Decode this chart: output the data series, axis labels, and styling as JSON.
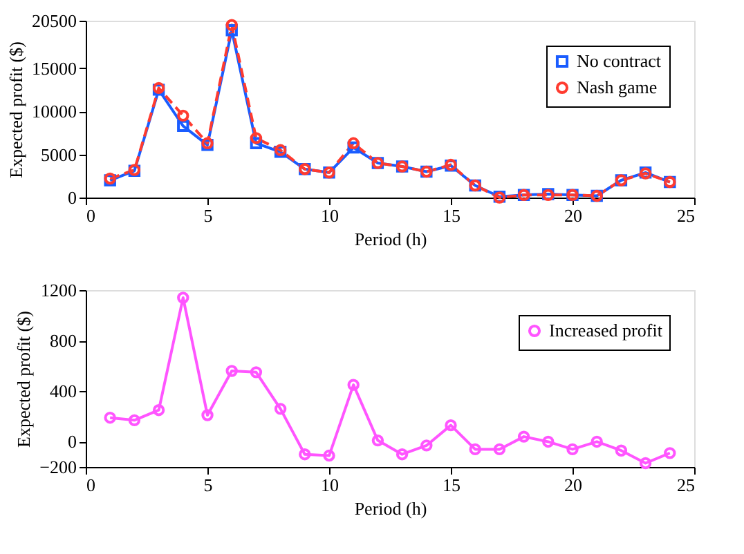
{
  "chart_data": [
    {
      "type": "line",
      "xlabel": "Period (h)",
      "ylabel": "Expected profit ($)",
      "x": [
        1,
        2,
        3,
        4,
        5,
        6,
        7,
        8,
        9,
        10,
        11,
        12,
        13,
        14,
        15,
        16,
        17,
        18,
        19,
        20,
        21,
        22,
        23,
        24
      ],
      "xlim": [
        0,
        25
      ],
      "xticks": [
        0,
        5,
        10,
        15,
        20,
        25
      ],
      "ylim": [
        0,
        20500
      ],
      "yticks": [
        0,
        5000,
        10000,
        15000,
        20500
      ],
      "grid": false,
      "legend": "top right",
      "series": [
        {
          "name": "No contract",
          "color": "#1a5cff",
          "marker": "square",
          "line_style": "solid",
          "values": [
            2000,
            3100,
            12500,
            8300,
            6100,
            19400,
            6300,
            5300,
            3300,
            2900,
            5800,
            4000,
            3600,
            3000,
            3700,
            1400,
            100,
            300,
            400,
            300,
            200,
            2000,
            2900,
            1800
          ]
        },
        {
          "name": "Nash game",
          "color": "#ff3b2f",
          "marker": "circle",
          "line_style": "dashed",
          "values": [
            2200,
            3200,
            12700,
            9500,
            6300,
            20000,
            6900,
            5500,
            3300,
            2900,
            6300,
            4000,
            3600,
            3000,
            3800,
            1400,
            0,
            300,
            300,
            300,
            200,
            2000,
            2800,
            1800
          ]
        }
      ]
    },
    {
      "type": "line",
      "xlabel": "Period (h)",
      "ylabel": "Expected profit ($)",
      "x": [
        1,
        2,
        3,
        4,
        5,
        6,
        7,
        8,
        9,
        10,
        11,
        12,
        13,
        14,
        15,
        16,
        17,
        18,
        19,
        20,
        21,
        22,
        23,
        24
      ],
      "xlim": [
        0,
        25
      ],
      "xticks": [
        0,
        5,
        10,
        15,
        20,
        25
      ],
      "ylim": [
        -200,
        1200
      ],
      "yticks": [
        -200,
        0,
        400,
        800,
        1200
      ],
      "grid": false,
      "legend": "top right",
      "series": [
        {
          "name": "Increased profit",
          "color": "#ff55ff",
          "marker": "circle",
          "line_style": "solid",
          "values": [
            190,
            170,
            250,
            1140,
            210,
            560,
            550,
            260,
            -100,
            -110,
            450,
            10,
            -100,
            -30,
            130,
            -60,
            -60,
            40,
            0,
            -60,
            0,
            -70,
            -170,
            -90
          ]
        }
      ]
    }
  ]
}
